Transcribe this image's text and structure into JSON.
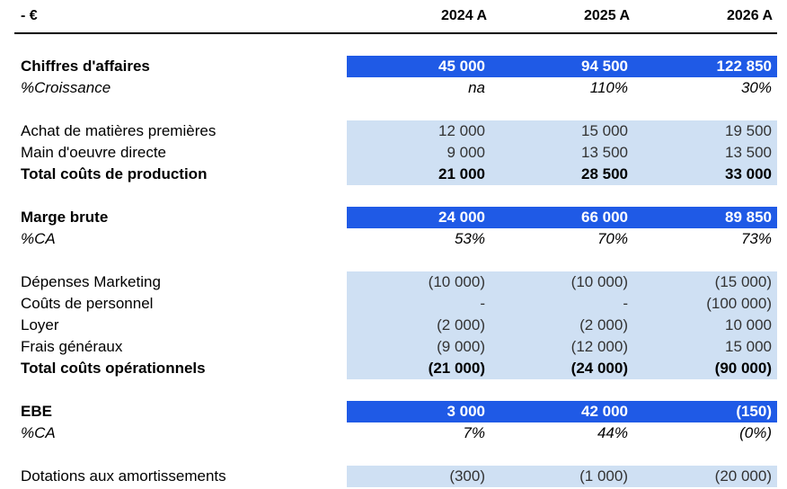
{
  "header": {
    "unit": "- €",
    "years": [
      "2024 A",
      "2025 A",
      "2026 A"
    ]
  },
  "rows": {
    "ca": {
      "label": "Chiffres d'affaires",
      "values": [
        "45 000",
        "94 500",
        "122 850"
      ]
    },
    "croissance": {
      "label": "%Croissance",
      "values": [
        "na",
        "110%",
        "30%"
      ]
    },
    "achat": {
      "label": "Achat de matières premières",
      "values": [
        "12 000",
        "15 000",
        "19 500"
      ]
    },
    "main": {
      "label": "Main d'oeuvre directe",
      "values": [
        "9 000",
        "13 500",
        "13 500"
      ]
    },
    "total_prod": {
      "label": "Total coûts de production",
      "values": [
        "21 000",
        "28 500",
        "33 000"
      ]
    },
    "marge": {
      "label": "Marge brute",
      "values": [
        "24 000",
        "66 000",
        "89 850"
      ]
    },
    "marge_pct": {
      "label": "%CA",
      "values": [
        "53%",
        "70%",
        "73%"
      ]
    },
    "marketing": {
      "label": "Dépenses Marketing",
      "values": [
        "(10 000)",
        "(10 000)",
        "(15 000)"
      ]
    },
    "personnel": {
      "label": "Coûts de personnel",
      "values": [
        "-",
        "-",
        "(100 000)"
      ]
    },
    "loyer": {
      "label": "Loyer",
      "values": [
        "(2 000)",
        "(2 000)",
        "10 000"
      ]
    },
    "frais": {
      "label": "Frais généraux",
      "values": [
        "(9 000)",
        "(12 000)",
        "15 000"
      ]
    },
    "total_op": {
      "label": "Total coûts opérationnels",
      "values": [
        "(21 000)",
        "(24 000)",
        "(90 000)"
      ]
    },
    "ebe": {
      "label": "EBE",
      "values": [
        "3 000",
        "42 000",
        "(150)"
      ]
    },
    "ebe_pct": {
      "label": "%CA",
      "values": [
        "7%",
        "44%",
        "(0%)"
      ]
    },
    "dotations": {
      "label": "Dotations aux amortissements",
      "values": [
        "(300)",
        "(1 000)",
        "(20 000)"
      ]
    }
  }
}
